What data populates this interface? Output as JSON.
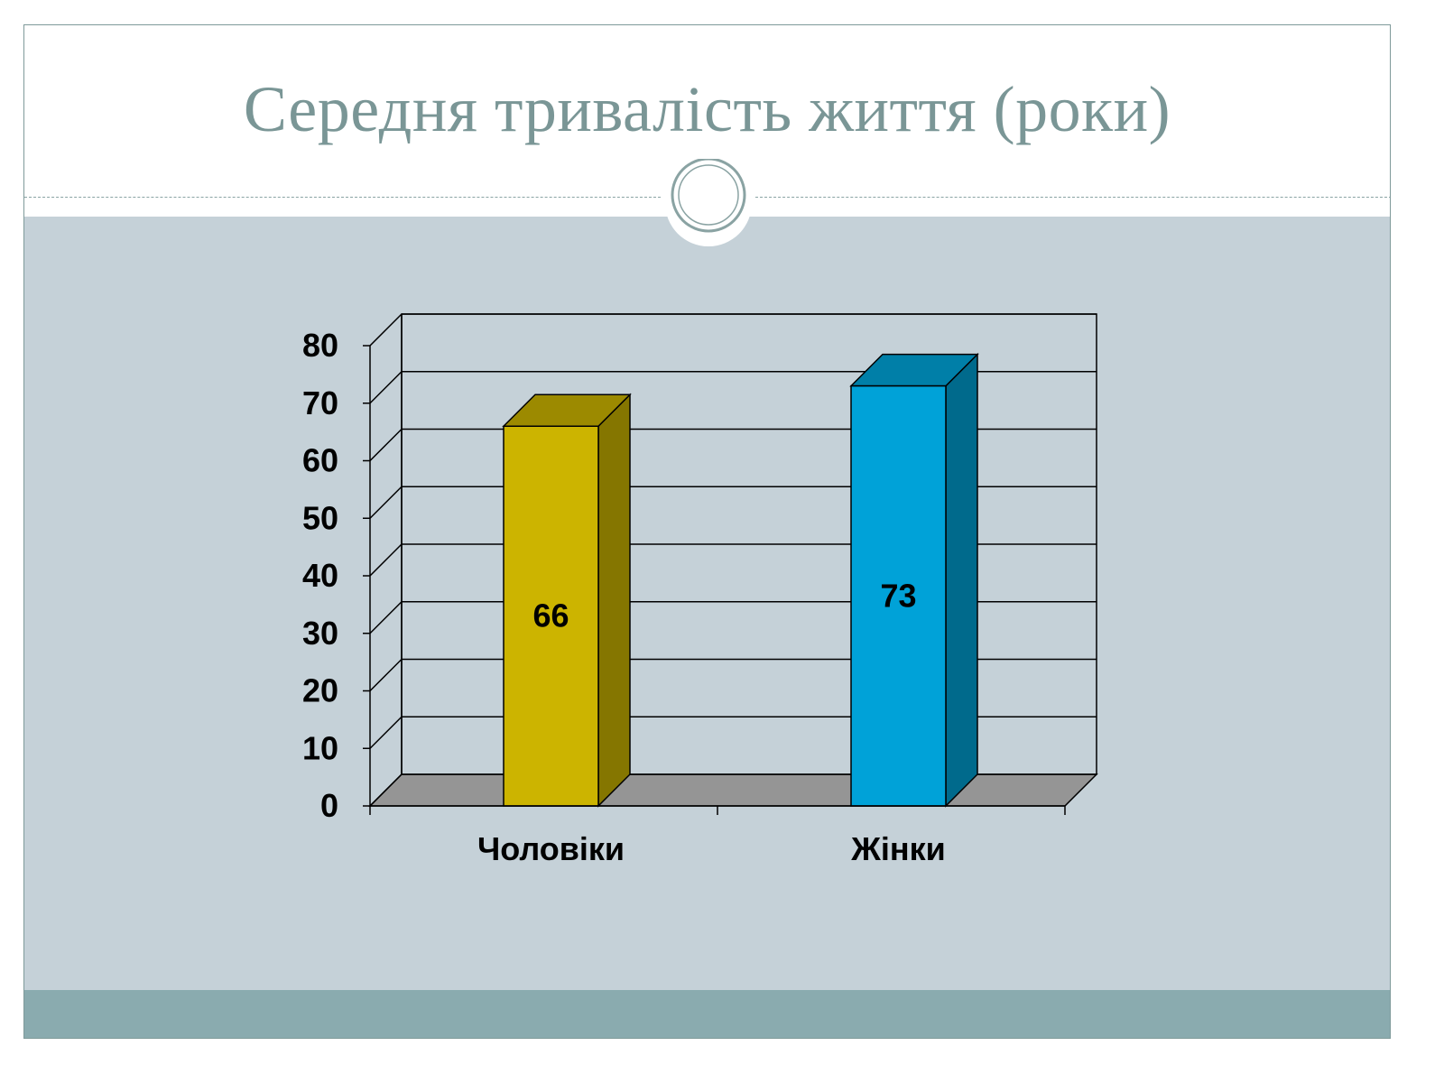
{
  "slide": {
    "title": "Середня тривалість життя (роки)",
    "colors": {
      "title": "#7a9696",
      "body_bg": "#c5d1d8",
      "footer_band": "#8aabaf",
      "divider": "#8aa3a3"
    }
  },
  "chart_data": {
    "type": "bar",
    "style": "3d",
    "title": "",
    "xlabel": "",
    "ylabel": "",
    "categories": [
      "Чоловіки",
      "Жінки"
    ],
    "values": [
      66,
      73
    ],
    "data_labels": [
      "66",
      "73"
    ],
    "ylim": [
      0,
      80
    ],
    "yticks": [
      "0",
      "10",
      "20",
      "30",
      "40",
      "50",
      "60",
      "70",
      "80"
    ],
    "grid": true,
    "legend": "none",
    "bar_colors": [
      {
        "front": "#ccb400",
        "side": "#857600",
        "top": "#9c8a00"
      },
      {
        "front": "#00a2d8",
        "side": "#006a8c",
        "top": "#007fa8"
      }
    ],
    "floor_color": "#959595"
  }
}
